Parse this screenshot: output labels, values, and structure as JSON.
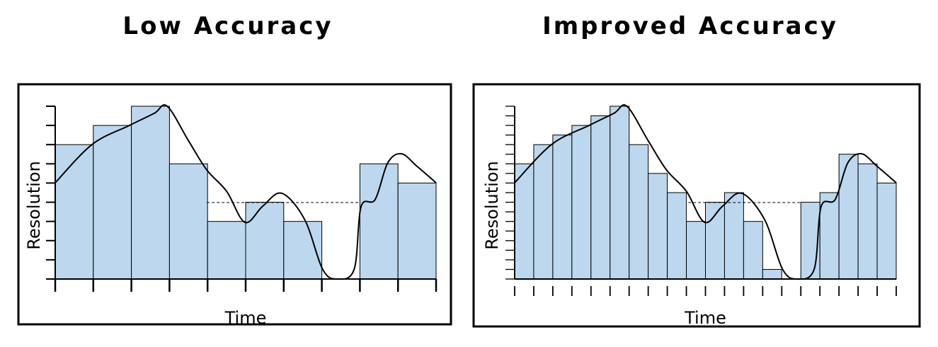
{
  "chart_data": [
    {
      "type": "bar",
      "title": "Low Accuracy",
      "xlabel": "Time",
      "ylabel": "Resolution",
      "categories": [
        null,
        null,
        null,
        null,
        null,
        null,
        null,
        null,
        null,
        null
      ],
      "values": [
        7,
        8,
        9,
        6,
        3,
        4,
        3,
        0,
        6,
        5
      ],
      "ylim": [
        0,
        9
      ],
      "yticks": [
        0,
        1,
        2,
        3,
        4,
        5,
        6,
        7,
        8,
        9
      ],
      "color": "#bdd7ee"
    },
    {
      "type": "bar",
      "title": "Improved Accuracy",
      "xlabel": "Time",
      "ylabel": "Resolution",
      "categories": [
        null,
        null,
        null,
        null,
        null,
        null,
        null,
        null,
        null,
        null,
        null,
        null,
        null,
        null,
        null,
        null,
        null,
        null,
        null,
        null
      ],
      "values": [
        12,
        14,
        15,
        16,
        17,
        18,
        14,
        11,
        9,
        6,
        8,
        9,
        6,
        1,
        0,
        8,
        9,
        13,
        12,
        10
      ],
      "ylim": [
        0,
        18
      ],
      "yticks": [
        0,
        1,
        2,
        3,
        4,
        5,
        6,
        7,
        8,
        9,
        10,
        11,
        12,
        13,
        14,
        15,
        16,
        17,
        18
      ],
      "color": "#bdd7ee"
    }
  ]
}
